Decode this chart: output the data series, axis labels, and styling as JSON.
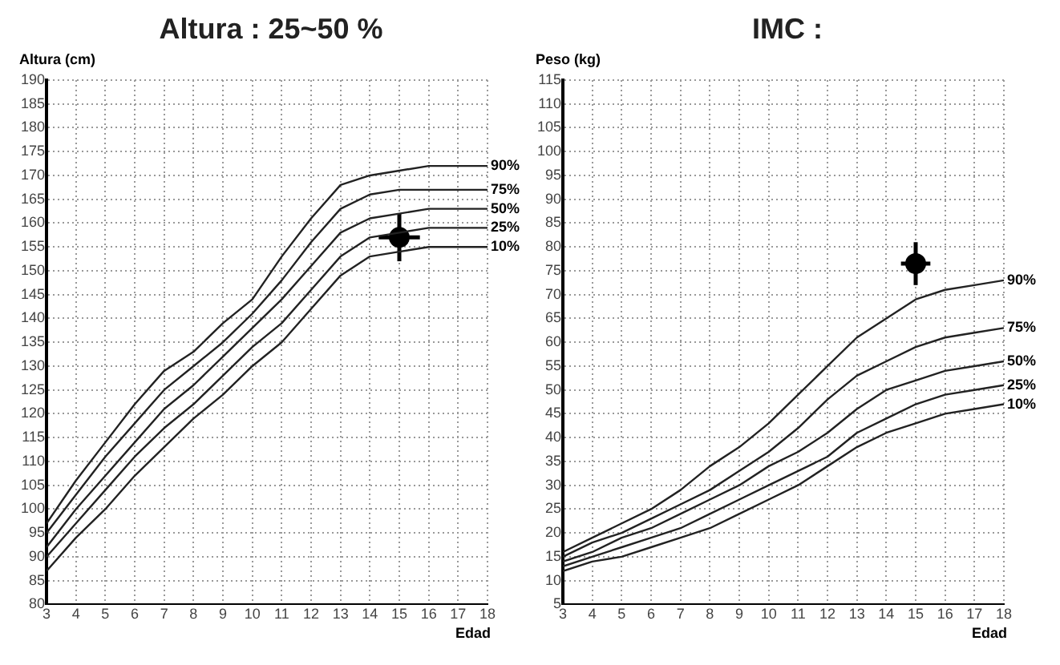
{
  "chart_data": [
    {
      "type": "line",
      "title": "Altura :  25~50 %",
      "xlabel": "Edad",
      "ylabel": "Altura (cm)",
      "x": [
        3,
        4,
        5,
        6,
        7,
        8,
        9,
        10,
        11,
        12,
        13,
        14,
        15,
        16,
        17,
        18
      ],
      "series": [
        {
          "name": "90%",
          "color": "#222222",
          "values": [
            97,
            106,
            114,
            122,
            129,
            133,
            139,
            144,
            153,
            161,
            168,
            170,
            171,
            172,
            172,
            172
          ]
        },
        {
          "name": "75%",
          "color": "#222222",
          "values": [
            95,
            103,
            111,
            118,
            125,
            130,
            135,
            141,
            148,
            156,
            163,
            166,
            167,
            167,
            167,
            167
          ]
        },
        {
          "name": "50%",
          "color": "#222222",
          "values": [
            92,
            100,
            107,
            114,
            121,
            126,
            132,
            138,
            144,
            151,
            158,
            161,
            162,
            163,
            163,
            163
          ]
        },
        {
          "name": "25%",
          "color": "#222222",
          "values": [
            90,
            97,
            104,
            111,
            117,
            122,
            128,
            134,
            139,
            146,
            153,
            157,
            158,
            159,
            159,
            159
          ]
        },
        {
          "name": "10%",
          "color": "#222222",
          "values": [
            87,
            94,
            100,
            107,
            113,
            119,
            124,
            130,
            135,
            142,
            149,
            153,
            154,
            155,
            155,
            155
          ]
        },
        {
          "type": "scatter",
          "color": "#000000",
          "marker": "circle",
          "x": [
            15
          ],
          "values": [
            157
          ],
          "errors": [
            5
          ],
          "xerrors": [
            0.7
          ]
        }
      ],
      "xlim": [
        3,
        18
      ],
      "ylim": [
        80,
        190
      ],
      "xticks": [
        3,
        4,
        5,
        6,
        7,
        8,
        9,
        10,
        11,
        12,
        13,
        14,
        15,
        16,
        17,
        18
      ],
      "yticks": [
        80,
        85,
        90,
        95,
        100,
        105,
        110,
        115,
        120,
        125,
        130,
        135,
        140,
        145,
        150,
        155,
        160,
        165,
        170,
        175,
        180,
        185,
        190
      ],
      "grid": true,
      "legend": false,
      "line_style": "solid"
    },
    {
      "type": "line",
      "title": "IMC :",
      "xlabel": "Edad",
      "ylabel": "Peso (kg)",
      "x": [
        3,
        4,
        5,
        6,
        7,
        8,
        9,
        10,
        11,
        12,
        13,
        14,
        15,
        16,
        17,
        18
      ],
      "series": [
        {
          "name": "90%",
          "color": "#222222",
          "values": [
            16,
            19,
            22,
            25,
            29,
            34,
            38,
            43,
            49,
            55,
            61,
            65,
            69,
            71,
            72,
            73
          ]
        },
        {
          "name": "75%",
          "color": "#222222",
          "values": [
            15,
            18,
            20,
            23,
            26,
            29,
            33,
            37,
            42,
            48,
            53,
            56,
            59,
            61,
            62,
            63
          ]
        },
        {
          "name": "50%",
          "color": "#222222",
          "values": [
            14,
            16,
            19,
            21,
            24,
            27,
            30,
            34,
            37,
            41,
            46,
            50,
            52,
            54,
            55,
            56
          ]
        },
        {
          "name": "25%",
          "color": "#222222",
          "values": [
            13,
            15,
            17,
            19,
            21,
            24,
            27,
            30,
            33,
            36,
            41,
            44,
            47,
            49,
            50,
            51
          ]
        },
        {
          "name": "10%",
          "color": "#222222",
          "values": [
            12,
            14,
            15,
            17,
            19,
            21,
            24,
            27,
            30,
            34,
            38,
            41,
            43,
            45,
            46,
            47
          ]
        },
        {
          "type": "scatter",
          "color": "#000000",
          "marker": "circle",
          "x": [
            15
          ],
          "values": [
            76.5
          ],
          "errors": [
            4.5
          ],
          "xerrors": [
            0.5
          ]
        }
      ],
      "xlim": [
        3,
        18
      ],
      "ylim": [
        5,
        115
      ],
      "xticks": [
        3,
        4,
        5,
        6,
        7,
        8,
        9,
        10,
        11,
        12,
        13,
        14,
        15,
        16,
        17,
        18
      ],
      "yticks": [
        5,
        10,
        15,
        20,
        25,
        30,
        35,
        40,
        45,
        50,
        55,
        60,
        65,
        70,
        75,
        80,
        85,
        90,
        95,
        100,
        105,
        110,
        115
      ],
      "grid": true,
      "legend": false,
      "line_style": "solid"
    }
  ]
}
